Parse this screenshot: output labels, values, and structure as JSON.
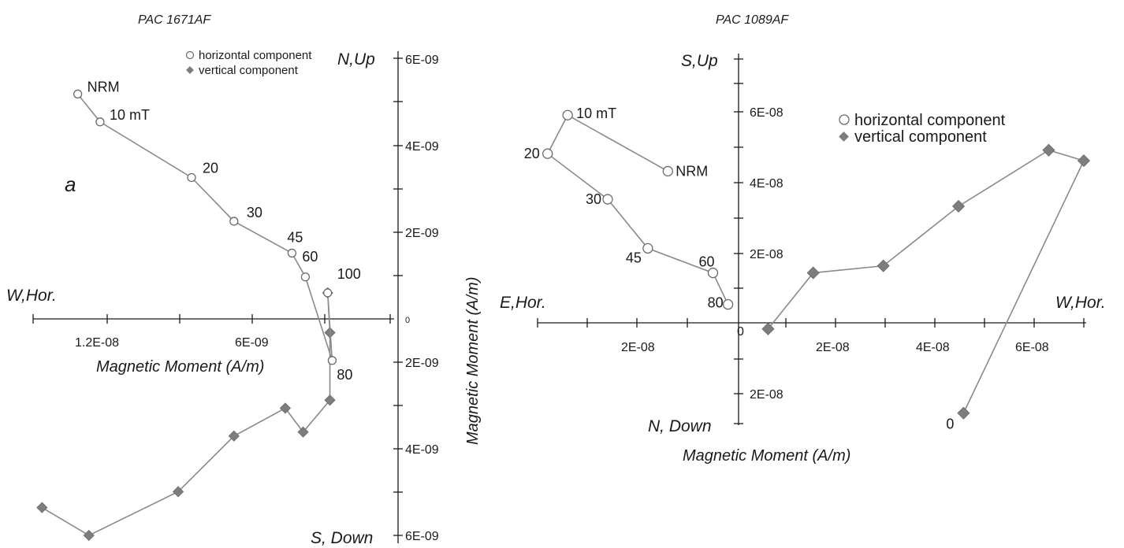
{
  "chart_data": [
    {
      "type": "scatter",
      "title": "PAC 1671AF",
      "panel_label": "a",
      "axis_ends": {
        "left": "W,Hor.",
        "top": "N,Up",
        "bottom": "S, Down"
      },
      "x_axis_label": "Magnetic Moment (A/m)",
      "y_axis_label": "Magnetic Moment (A/m)",
      "x_tick_labels": [
        "1.2E-08",
        "6E-09"
      ],
      "y_tick_labels": [
        "6E-09",
        "4E-09",
        "2E-09",
        "0",
        "2E-09",
        "4E-09",
        "6E-09"
      ],
      "xlim": [
        1.5e-08,
        -1e-09
      ],
      "ylim": [
        -6e-09,
        6e-09
      ],
      "legend": [
        "horizontal component",
        "vertical component"
      ],
      "series": [
        {
          "name": "horizontal component",
          "marker": "open-circle",
          "points": [
            {
              "x": 1.3e-08,
              "y": 5.1e-09,
              "label": "NRM"
            },
            {
              "x": 1.2e-08,
              "y": 4.4e-09,
              "label": "10 mT"
            },
            {
              "x": 7.9e-09,
              "y": 3e-09,
              "label": "20"
            },
            {
              "x": 6e-09,
              "y": 1.9e-09,
              "label": "30"
            },
            {
              "x": 3.4e-09,
              "y": 1.1e-09,
              "label": "45"
            },
            {
              "x": 2.8e-09,
              "y": 5e-10,
              "label": "60"
            },
            {
              "x": 1.6e-09,
              "y": -1.6e-09,
              "label": "80"
            },
            {
              "x": 1.8e-09,
              "y": 1e-10,
              "label": "100"
            }
          ]
        },
        {
          "name": "vertical component",
          "marker": "filled-diamond",
          "points": [
            {
              "x": 1.46e-08,
              "y": -5.3e-09
            },
            {
              "x": 1.25e-08,
              "y": -6e-09
            },
            {
              "x": 8.5e-09,
              "y": -4.9e-09
            },
            {
              "x": 6e-09,
              "y": -3.5e-09
            },
            {
              "x": 3.7e-09,
              "y": -2.8e-09
            },
            {
              "x": 2.9e-09,
              "y": -3.4e-09
            },
            {
              "x": 1.7e-09,
              "y": -2.6e-09
            },
            {
              "x": 1.7e-09,
              "y": -9e-10
            },
            {
              "x": 1.8e-09,
              "y": 1e-10
            }
          ]
        }
      ]
    },
    {
      "type": "scatter",
      "title": "PAC 1089AF",
      "axis_ends": {
        "left": "E,Hor.",
        "right": "W,Hor.",
        "top": "S,Up",
        "bottom": "N, Down"
      },
      "x_axis_label": "Magnetic Moment (A/m)",
      "x_tick_labels": [
        "2E-08",
        "0",
        "2E-08",
        "4E-08",
        "6E-08"
      ],
      "y_tick_labels": [
        "6E-08",
        "4E-08",
        "2E-08",
        "2E-08"
      ],
      "xlim": [
        -3.9e-08,
        7e-08
      ],
      "ylim": [
        -2.7e-08,
        7.7e-08
      ],
      "legend": [
        "horizontal component",
        "vertical component"
      ],
      "series": [
        {
          "name": "horizontal component",
          "marker": "open-circle",
          "points": [
            {
              "x": -1.3e-08,
              "y": 4.5e-08,
              "label": "NRM"
            },
            {
              "x": -3.3e-08,
              "y": 6.1e-08,
              "label": "10 mT"
            },
            {
              "x": -3.7e-08,
              "y": 5e-08,
              "label": "20"
            },
            {
              "x": -2.5e-08,
              "y": 3.7e-08,
              "label": "30"
            },
            {
              "x": -1.7e-08,
              "y": 2.3e-08,
              "label": "45"
            },
            {
              "x": -4e-09,
              "y": 1.6e-08,
              "label": "60"
            },
            {
              "x": -1e-09,
              "y": 7e-09,
              "label": "80"
            }
          ]
        },
        {
          "name": "vertical component",
          "marker": "filled-diamond",
          "points": [
            {
              "x": 4.6e-08,
              "y": -2.4e-08,
              "label": "0"
            },
            {
              "x": 7e-08,
              "y": 4.8e-08
            },
            {
              "x": 6.3e-08,
              "y": 5.1e-08
            },
            {
              "x": 4.5e-08,
              "y": 3.5e-08
            },
            {
              "x": 3e-08,
              "y": 1.8e-08
            },
            {
              "x": 1.6e-08,
              "y": 1.6e-08
            },
            {
              "x": 7e-09,
              "y": 0.0
            }
          ]
        }
      ]
    }
  ],
  "colors": {
    "axis": "#1a1a1a",
    "series_line": "#8a8a8a",
    "marker_fill": "#7d7d7d",
    "marker_stroke": "#6a6a6a",
    "open_marker_fill": "#ffffff"
  }
}
